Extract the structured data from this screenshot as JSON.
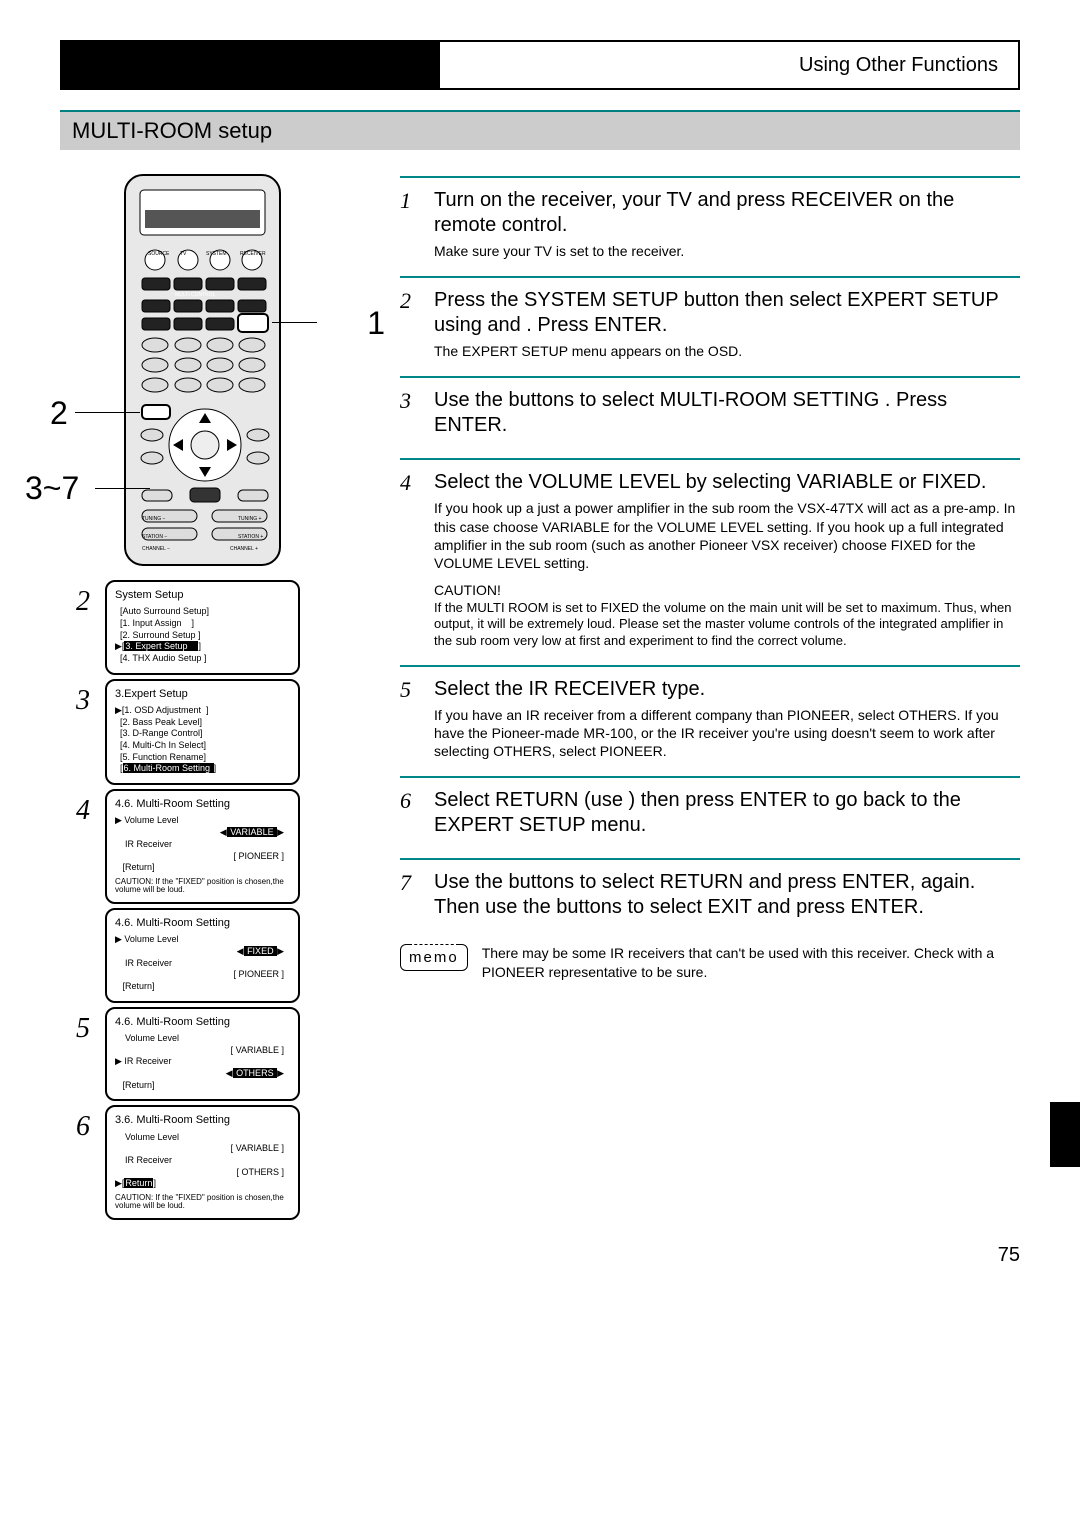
{
  "header": {
    "rightText": "Using Other Functions"
  },
  "sectionTitle": "MULTI-ROOM setup",
  "callouts": {
    "c1": "1",
    "c2": "2",
    "c3": "3~7"
  },
  "osd": {
    "panel2": {
      "num": "2",
      "title": "System Setup",
      "lines": [
        "  [Auto Surround Setup]",
        "",
        "  [1. Input Assign    ]",
        "  [2. Surround Setup ]",
        "▶[3. Expert Setup    ]",
        "  [4. THX Audio Setup ]"
      ],
      "hlIndex": 4
    },
    "panel3": {
      "num": "3",
      "title": "3.Expert Setup",
      "lines": [
        "▶[1. OSD Adjustment  ]",
        "  [2. Bass Peak Level]",
        "  [3. D-Range Control]",
        "  [4. Multi-Ch In Select]",
        "  [5. Function Rename]",
        "  [6. Multi-Room Setting ]"
      ],
      "hlIndex": 5
    },
    "panel4a": {
      "num": "4",
      "title": "4.6. Multi-Room Setting",
      "rows": [
        {
          "label": "▶ Volume Level",
          "value": "VARIABLE",
          "hl": true,
          "arrows": true
        },
        {
          "label": "    IR Receiver",
          "value": "PIONEER",
          "hl": false,
          "arrows": false
        },
        {
          "label": "   [Return]",
          "value": "",
          "hl": false,
          "arrows": false
        }
      ],
      "caution": "CAUTION: If the \"FIXED\" position is chosen,the volume will be loud."
    },
    "panel4b": {
      "num": "",
      "title": "4.6. Multi-Room Setting",
      "rows": [
        {
          "label": "▶ Volume Level",
          "value": "FIXED",
          "hl": true,
          "arrows": true
        },
        {
          "label": "    IR Receiver",
          "value": "PIONEER",
          "hl": false,
          "arrows": false
        },
        {
          "label": "   [Return]",
          "value": "",
          "hl": false,
          "arrows": false
        }
      ]
    },
    "panel5": {
      "num": "5",
      "title": "4.6. Multi-Room Setting",
      "rows": [
        {
          "label": "    Volume Level",
          "value": "VARIABLE",
          "hl": false,
          "arrows": false
        },
        {
          "label": "▶ IR Receiver",
          "value": "OTHERS",
          "hl": true,
          "arrows": true
        },
        {
          "label": "   [Return]",
          "value": "",
          "hl": false,
          "arrows": false
        }
      ]
    },
    "panel6": {
      "num": "6",
      "title": "3.6. Multi-Room Setting",
      "rows": [
        {
          "label": "    Volume Level",
          "value": "VARIABLE",
          "hl": false,
          "arrows": false
        },
        {
          "label": "    IR Receiver",
          "value": "OTHERS",
          "hl": false,
          "arrows": false
        },
        {
          "label": "▶[Return]",
          "value": "",
          "hl": true,
          "arrows": false,
          "labelHl": "Return"
        }
      ],
      "caution": "CAUTION: If the \"FIXED\" position is chosen,the volume will be loud."
    }
  },
  "steps": [
    {
      "n": "1",
      "title": "Turn on the receiver, your TV and press RECEIVER on the remote control.",
      "sub": "Make sure your TV is set to the receiver."
    },
    {
      "n": "2",
      "title": "Press the SYSTEM SETUP button then select EXPERT SETUP using     and    . Press ENTER.",
      "sub": "The EXPERT SETUP menu appears on the OSD."
    },
    {
      "n": "3",
      "title": "Use the         buttons to select MULTI-ROOM SETTING . Press ENTER."
    },
    {
      "n": "4",
      "title": "Select the VOLUME LEVEL by selecting VARIABLE or FIXED.",
      "sub": "If you hook up a just a power amplifier in the sub room the VSX-47TX will act as a pre-amp. In this case choose VARIABLE for the VOLUME LEVEL setting. If you hook up a full integrated amplifier in the sub room (such as another Pioneer VSX receiver) choose FIXED for the VOLUME LEVEL setting.",
      "cautionLabel": "CAUTION!",
      "caution": "If the MULTI ROOM is set to FIXED the volume on the main unit will be set to maximum. Thus, when output, it will be extremely loud. Please set the master volume controls of the integrated amplifier in the sub room very low at first and experiment to find the correct volume."
    },
    {
      "n": "5",
      "title": "Select the IR RECEIVER type.",
      "sub": "If you have an IR receiver from a different company than PIONEER, select OTHERS. If you have the Pioneer-made MR-100, or the IR receiver you're using doesn't seem to work after selecting OTHERS, select PIONEER."
    },
    {
      "n": "6",
      "title": "Select RETURN (use        ) then press ENTER to go back to the EXPERT SETUP menu."
    },
    {
      "n": "7",
      "title": "Use the         buttons to select RETURN and press ENTER, again. Then use the         buttons to select EXIT and press ENTER."
    }
  ],
  "memo": {
    "label": "memo",
    "text": "There may be some IR receivers that can't be used with this receiver. Check with a PIONEER representative to be sure."
  },
  "pageNumber": "75"
}
